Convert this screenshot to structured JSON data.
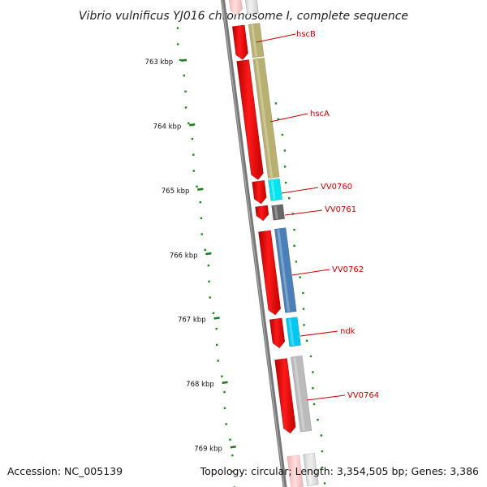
{
  "title": "Vibrio vulnificus YJ016 chromosome I, complete sequence",
  "accession": "Accession: NC_005139",
  "topology": "Topology: circular; Length: 3,354,505 bp; Genes: 3,386",
  "ticks": [
    {
      "label": "763 kbp",
      "kbp": 763
    },
    {
      "label": "764 kbp",
      "kbp": 764
    },
    {
      "label": "765 kbp",
      "kbp": 765
    },
    {
      "label": "766 kbp",
      "kbp": 766
    },
    {
      "label": "767 kbp",
      "kbp": 767
    },
    {
      "label": "768 kbp",
      "kbp": 768
    },
    {
      "label": "769 kbp",
      "kbp": 769
    }
  ],
  "genes": [
    {
      "name": "hscB",
      "color": "#b8b070"
    },
    {
      "name": "hscA",
      "color": "#b8b070"
    },
    {
      "name": "VV0760",
      "color": "#00e5f0"
    },
    {
      "name": "VV0761",
      "color": "#666666"
    },
    {
      "name": "VV0762",
      "color": "#4a7fb8"
    },
    {
      "name": "ndk",
      "color": "#00c8f0"
    },
    {
      "name": "VV0764",
      "color": "#bbbbbb"
    }
  ],
  "colors": {
    "cds": "#ee0000",
    "cds_faded": "#f6b8b8",
    "backbone": "#777777",
    "gc_dots": "#1a8a1a",
    "label": "#cc0000"
  }
}
